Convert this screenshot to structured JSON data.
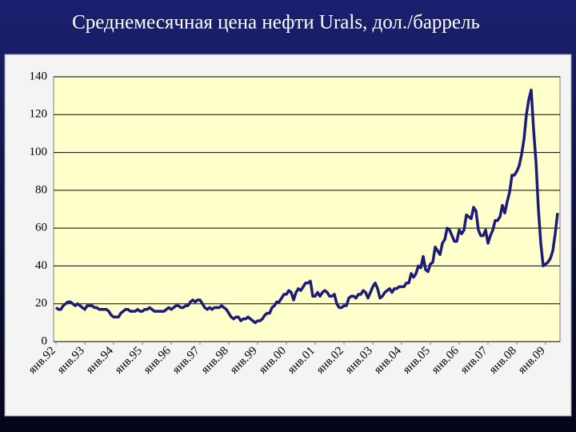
{
  "chart_data": {
    "type": "line",
    "title": "Среднемесячная цена нефти Urals, дол./баррель",
    "categories": [
      "янв.92",
      null,
      null,
      null,
      null,
      null,
      null,
      null,
      null,
      null,
      null,
      null,
      "янв.93",
      null,
      null,
      null,
      null,
      null,
      null,
      null,
      null,
      null,
      null,
      null,
      "янв.94",
      null,
      null,
      null,
      null,
      null,
      null,
      null,
      null,
      null,
      null,
      null,
      "янв.95",
      null,
      null,
      null,
      null,
      null,
      null,
      null,
      null,
      null,
      null,
      null,
      "янв.96",
      null,
      null,
      null,
      null,
      null,
      null,
      null,
      null,
      null,
      null,
      null,
      "янв.97",
      null,
      null,
      null,
      null,
      null,
      null,
      null,
      null,
      null,
      null,
      null,
      "янв.98",
      null,
      null,
      null,
      null,
      null,
      null,
      null,
      null,
      null,
      null,
      null,
      "янв.99",
      null,
      null,
      null,
      null,
      null,
      null,
      null,
      null,
      null,
      null,
      null,
      "янв.00",
      null,
      null,
      null,
      null,
      null,
      null,
      null,
      null,
      null,
      null,
      null,
      "янв.01",
      null,
      null,
      null,
      null,
      null,
      null,
      null,
      null,
      null,
      null,
      null,
      "янв.02",
      null,
      null,
      null,
      null,
      null,
      null,
      null,
      null,
      null,
      null,
      null,
      "янв.03",
      null,
      null,
      null,
      null,
      null,
      null,
      null,
      null,
      null,
      null,
      null,
      "янв.04",
      null,
      null,
      null,
      null,
      null,
      null,
      null,
      null,
      null,
      null,
      null,
      "янв.05",
      null,
      null,
      null,
      null,
      null,
      null,
      null,
      null,
      null,
      null,
      null,
      "янв.06",
      null,
      null,
      null,
      null,
      null,
      null,
      null,
      null,
      null,
      null,
      null,
      "янв.07",
      null,
      null,
      null,
      null,
      null,
      null,
      null,
      null,
      null,
      null,
      null,
      "янв.08",
      null,
      null,
      null,
      null,
      null,
      null,
      null,
      null,
      null,
      null,
      null,
      "янв.09",
      null,
      null,
      null,
      null,
      null
    ],
    "values": [
      18,
      17,
      17,
      19,
      20,
      21,
      21,
      20,
      19,
      20,
      19,
      18,
      17,
      19,
      19,
      19,
      18,
      18,
      17,
      17,
      17,
      17,
      16,
      14,
      13,
      13,
      13,
      15,
      16,
      17,
      17,
      16,
      16,
      16,
      17,
      16,
      16,
      17,
      17,
      18,
      17,
      16,
      16,
      16,
      16,
      16,
      17,
      18,
      17,
      18,
      19,
      19,
      18,
      18,
      19,
      19,
      21,
      22,
      21,
      22,
      22,
      20,
      18,
      17,
      18,
      17,
      18,
      18,
      18,
      19,
      18,
      17,
      15,
      13,
      12,
      13,
      13,
      11,
      12,
      12,
      13,
      12,
      11,
      10,
      11,
      11,
      12,
      14,
      15,
      15,
      18,
      19,
      21,
      21,
      23,
      25,
      25,
      27,
      26,
      22,
      26,
      28,
      27,
      29,
      31,
      31,
      32,
      24,
      24,
      26,
      24,
      26,
      27,
      26,
      24,
      24,
      25,
      20,
      18,
      18,
      19,
      19,
      23,
      24,
      24,
      23,
      25,
      25,
      27,
      26,
      23,
      26,
      29,
      31,
      28,
      23,
      24,
      26,
      27,
      28,
      26,
      28,
      28,
      29,
      29,
      29,
      31,
      31,
      36,
      34,
      36,
      40,
      39,
      45,
      38,
      37,
      41,
      42,
      50,
      48,
      46,
      52,
      54,
      60,
      59,
      56,
      53,
      53,
      59,
      57,
      59,
      67,
      66,
      65,
      71,
      69,
      59,
      56,
      56,
      59,
      52,
      56,
      59,
      64,
      64,
      66,
      72,
      68,
      74,
      79,
      88,
      88,
      90,
      93,
      99,
      107,
      120,
      128,
      133,
      112,
      95,
      70,
      52,
      40,
      41,
      42,
      44,
      48,
      57,
      68
    ],
    "color": "#1c1c78",
    "ylim": [
      0,
      140
    ],
    "yticks": [
      0,
      20,
      40,
      60,
      80,
      100,
      120,
      140
    ],
    "grid": true
  }
}
